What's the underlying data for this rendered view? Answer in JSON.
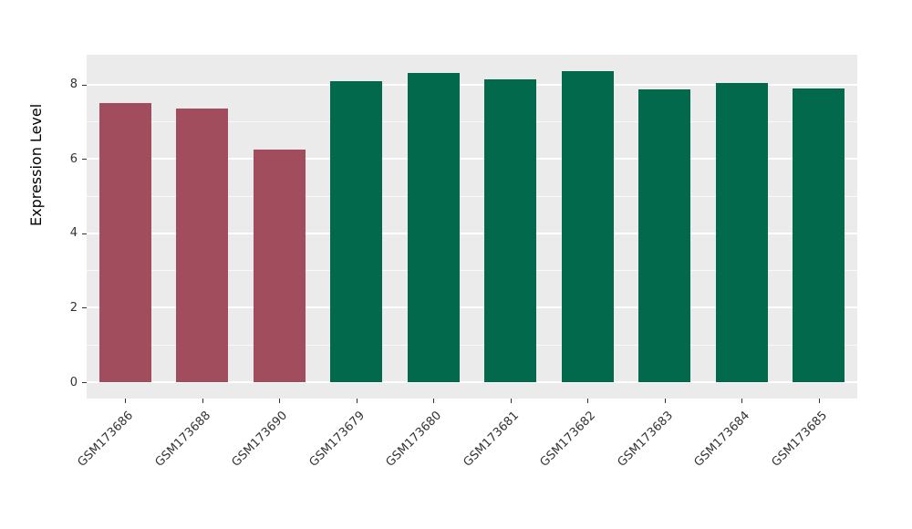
{
  "chart_data": {
    "type": "bar",
    "title": "",
    "xlabel": "",
    "ylabel": "Expression Level",
    "categories": [
      "GSM173686",
      "GSM173688",
      "GSM173690",
      "GSM173679",
      "GSM173680",
      "GSM173681",
      "GSM173682",
      "GSM173683",
      "GSM173684",
      "GSM173685"
    ],
    "values": [
      7.5,
      7.35,
      6.25,
      8.1,
      8.3,
      8.15,
      8.35,
      7.88,
      8.03,
      7.9
    ],
    "bar_colors": [
      "#A14D5D",
      "#A14D5D",
      "#A14D5D",
      "#03694C",
      "#03694C",
      "#03694C",
      "#03694C",
      "#03694C",
      "#03694C",
      "#03694C"
    ],
    "group_colors": {
      "group1": "#A14D5D",
      "group2": "#03694C"
    },
    "ylim": [
      -0.44,
      8.8
    ],
    "yticks": [
      0,
      2,
      4,
      6,
      8
    ],
    "yticks_minor": [
      1,
      3,
      5,
      7
    ],
    "grid": true,
    "legend": "none",
    "panel_background": "#EBEBEB",
    "grid_color": "#FFFFFF",
    "tick_color": "#333333"
  }
}
